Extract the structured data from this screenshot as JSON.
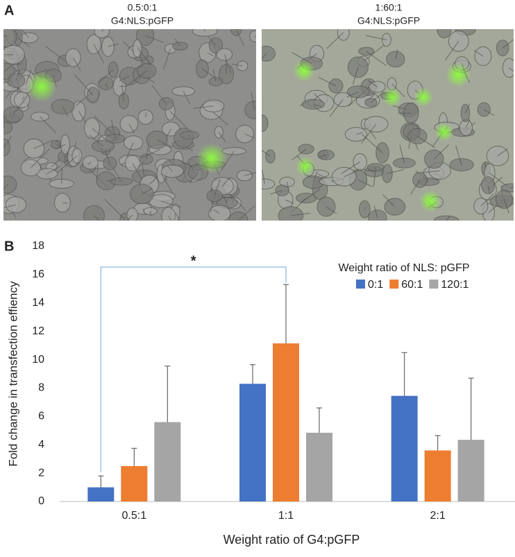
{
  "panel_a": {
    "label": "A",
    "images": [
      {
        "caption": [
          "0.5:0:1",
          "G4:NLS:pGFP"
        ]
      },
      {
        "caption": [
          "1:60:1",
          "G4:NLS:pGFP"
        ]
      }
    ]
  },
  "panel_b_label": "B",
  "chart_data": {
    "type": "bar",
    "x_label": "Weight ratio of G4:pGFP",
    "y_label": "Fold change in transfection effiency",
    "legend_title": "Weight ratio of NLS: pGFP",
    "legend_position": "upper right",
    "annotation": "*",
    "grid": false,
    "categories": [
      "0.5:1",
      "1:1",
      "2:1"
    ],
    "series": [
      {
        "name": "0:1",
        "color": "#4472c4",
        "values": [
          1.0,
          8.3,
          7.45
        ],
        "errors": [
          0.8,
          1.35,
          3.05
        ]
      },
      {
        "name": "60:1",
        "color": "#ed7d31",
        "values": [
          2.5,
          11.15,
          3.6
        ],
        "errors": [
          1.25,
          4.15,
          1.05
        ]
      },
      {
        "name": "120:1",
        "color": "#a5a5a5",
        "values": [
          5.6,
          4.85,
          4.35
        ],
        "errors": [
          3.95,
          1.75,
          4.35
        ]
      }
    ],
    "ylim": [
      0,
      18
    ],
    "yticks": [
      0,
      2,
      4,
      6,
      8,
      10,
      12,
      14,
      16,
      18
    ]
  }
}
